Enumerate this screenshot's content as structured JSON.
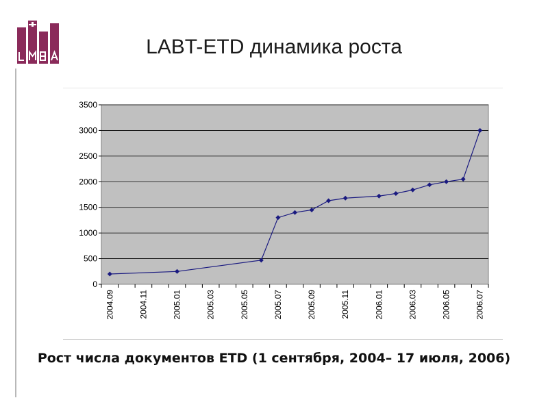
{
  "logo": {
    "text": "LMBA",
    "color": "#8a2a5a"
  },
  "title": "LABT-ETD динамика роста",
  "caption": "Рост числа документов ETD (1 сентября, 2004– 17 июля, 2006)",
  "chart_data": {
    "type": "line",
    "title": "",
    "xlabel": "",
    "ylabel": "",
    "ylim": [
      0,
      3500
    ],
    "yticks": [
      0,
      500,
      1000,
      1500,
      2000,
      2500,
      3000,
      3500
    ],
    "x_tick_labels": [
      "2004.09",
      "2004.11",
      "2005.01",
      "2005.03",
      "2005.05",
      "2005.07",
      "2005.09",
      "2005.11",
      "2006.01",
      "2006.03",
      "2006.05",
      "2006.07"
    ],
    "x_months": [
      "2004-09",
      "2004-10",
      "2004-11",
      "2004-12",
      "2005-01",
      "2005-02",
      "2005-03",
      "2005-04",
      "2005-05",
      "2005-06",
      "2005-07",
      "2005-08",
      "2005-09",
      "2005-10",
      "2005-11",
      "2005-12",
      "2006-01",
      "2006-02",
      "2006-03",
      "2006-04",
      "2006-05",
      "2006-06",
      "2006-07"
    ],
    "grid": true,
    "legend": "none",
    "plot_background": "#c0c0c0",
    "line_color": "#1a1a80",
    "series": [
      {
        "points": [
          {
            "x": "2004-09",
            "y": 200
          },
          {
            "x": "2005-01",
            "y": 250
          },
          {
            "x": "2005-06",
            "y": 470
          },
          {
            "x": "2005-07",
            "y": 1300
          },
          {
            "x": "2005-08",
            "y": 1400
          },
          {
            "x": "2005-09",
            "y": 1450
          },
          {
            "x": "2005-10",
            "y": 1630
          },
          {
            "x": "2005-11",
            "y": 1680
          },
          {
            "x": "2006-01",
            "y": 1720
          },
          {
            "x": "2006-02",
            "y": 1770
          },
          {
            "x": "2006-03",
            "y": 1840
          },
          {
            "x": "2006-04",
            "y": 1940
          },
          {
            "x": "2006-05",
            "y": 2000
          },
          {
            "x": "2006-06",
            "y": 2050
          },
          {
            "x": "2006-07",
            "y": 3000
          }
        ]
      }
    ]
  }
}
